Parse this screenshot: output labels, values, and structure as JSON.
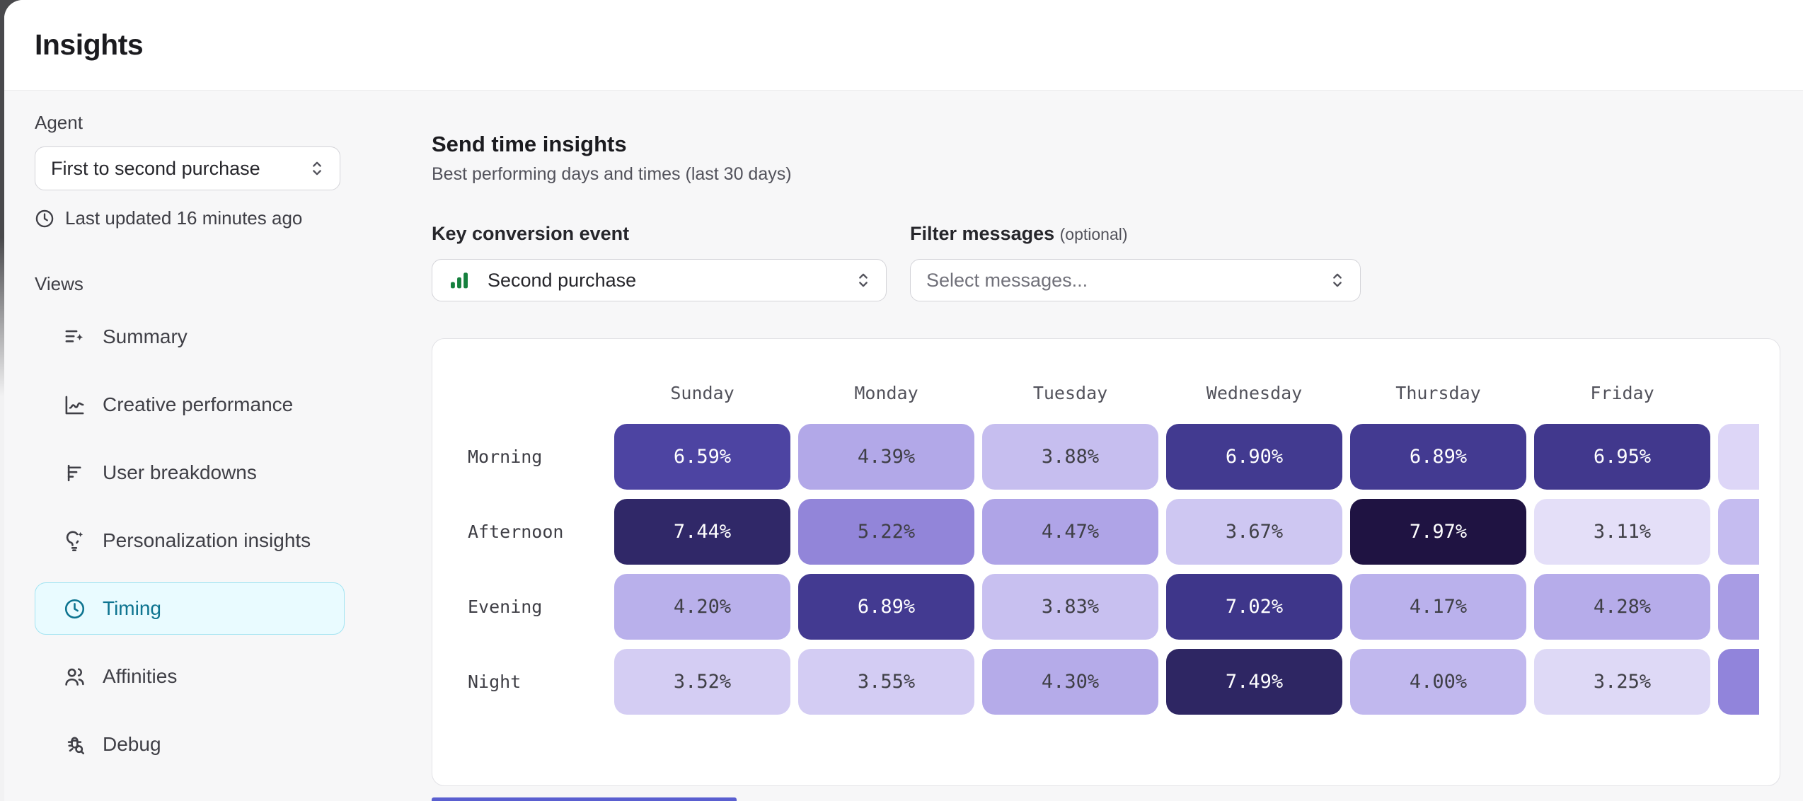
{
  "window": {
    "title": "Insights"
  },
  "sidebar": {
    "agent_label": "Agent",
    "agent_select": {
      "value": "First to second purchase"
    },
    "last_updated": "Last updated 16 minutes ago",
    "views_label": "Views",
    "items": [
      {
        "label": "Summary",
        "icon": "summary-icon",
        "active": false
      },
      {
        "label": "Creative performance",
        "icon": "chart-line-icon",
        "active": false
      },
      {
        "label": "User breakdowns",
        "icon": "breakdown-filter-icon",
        "active": false
      },
      {
        "label": "Personalization insights",
        "icon": "lightbulb-sparkle-icon",
        "active": false
      },
      {
        "label": "Timing",
        "icon": "clock-icon",
        "active": true
      },
      {
        "label": "Affinities",
        "icon": "users-icon",
        "active": false
      },
      {
        "label": "Debug",
        "icon": "bug-search-icon",
        "active": false
      }
    ],
    "active_color": "#0e7490",
    "active_bg": "#e9fbff"
  },
  "main": {
    "title": "Send time insights",
    "subtitle": "Best performing days and times (last 30 days)",
    "conversion": {
      "label": "Key conversion event",
      "value": "Second purchase",
      "icon": "bar-chart-icon",
      "icon_color": "#15803d"
    },
    "filter": {
      "label": "Filter messages",
      "label_suffix": "(optional)",
      "placeholder": "Select messages..."
    }
  },
  "chart_data": {
    "type": "heatmap",
    "title": "Send time insights",
    "columns": [
      "Sunday",
      "Monday",
      "Tuesday",
      "Wednesday",
      "Thursday",
      "Friday"
    ],
    "rows": [
      "Morning",
      "Afternoon",
      "Evening",
      "Night"
    ],
    "values": [
      [
        6.59,
        4.39,
        3.88,
        6.9,
        6.89,
        6.95
      ],
      [
        7.44,
        5.22,
        4.47,
        3.67,
        7.97,
        3.11
      ],
      [
        4.2,
        6.89,
        3.83,
        7.02,
        4.17,
        4.28
      ],
      [
        3.52,
        3.55,
        4.3,
        7.49,
        4.0,
        3.25
      ]
    ],
    "value_format": "percent-2dp",
    "partial_column_colors": [
      "#ddd6f7",
      "#c5bcf0",
      "#a89ce4",
      "#9184db"
    ],
    "color_scale": {
      "domain": [
        3.1,
        8.0
      ],
      "stops": [
        [
          0.0,
          "#e4dff8"
        ],
        [
          0.2,
          "#beb5ed"
        ],
        [
          0.35,
          "#a195e1"
        ],
        [
          0.5,
          "#8578d2"
        ],
        [
          0.7,
          "#4f46a5"
        ],
        [
          0.82,
          "#3b3384"
        ],
        [
          0.92,
          "#2a2259"
        ],
        [
          1.0,
          "#1e1240"
        ]
      ],
      "white_text_threshold": 6.0,
      "dark_text_color": "#3f3f46"
    }
  }
}
